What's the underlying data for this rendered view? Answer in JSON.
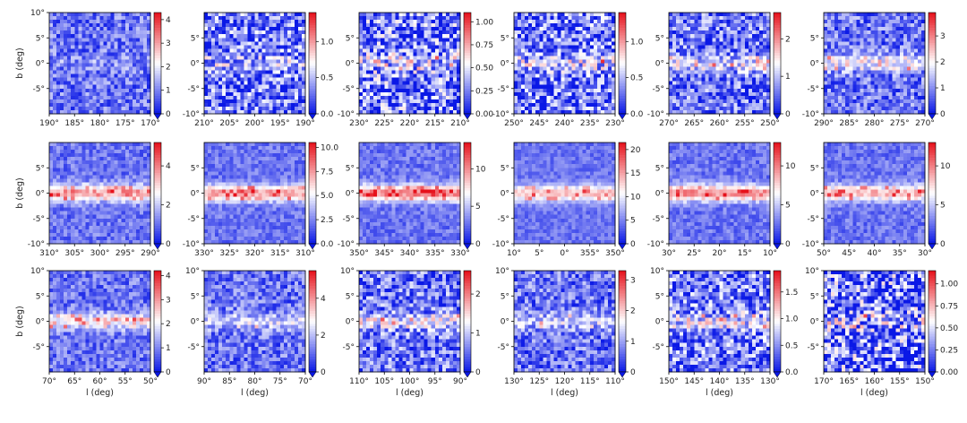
{
  "figure": {
    "colormap": {
      "low": "#0a18e6",
      "mid": "#ffffff",
      "high": "#e6101a"
    },
    "common_xlabel": "l (deg)",
    "common_ylabel": "b (deg)",
    "lat_ticks": [
      "10°",
      "5°",
      "0°",
      "-5°",
      "-10°"
    ]
  },
  "chart_data": [
    {
      "type": "heatmap",
      "xlabel": "",
      "ylabel": "b (deg)",
      "xlim": [
        190,
        170
      ],
      "ylim": [
        -10,
        10
      ],
      "xticks": [
        "190°",
        "185°",
        "180°",
        "175°",
        "170°"
      ],
      "yticks": [
        "10°",
        "5°",
        "0°",
        "-5°"
      ],
      "cbar_ticks": [
        "4",
        "3",
        "2",
        "1",
        "0"
      ],
      "cbar_range": [
        0,
        4.3
      ],
      "disk_strength": 0.1,
      "noise": 0.18,
      "blobs": []
    },
    {
      "type": "heatmap",
      "xlabel": "",
      "ylabel": "",
      "xlim": [
        210,
        190
      ],
      "ylim": [
        -10,
        10
      ],
      "xticks": [
        "210°",
        "205°",
        "200°",
        "195°",
        "190°"
      ],
      "yticks": [
        "5°",
        "0°",
        "-5°",
        "-10°"
      ],
      "cbar_ticks": [
        "1.0",
        "0.5",
        "0.0"
      ],
      "cbar_range": [
        0,
        1.4
      ],
      "disk_strength": 0.25,
      "noise": 0.3,
      "blobs": []
    },
    {
      "type": "heatmap",
      "xlabel": "",
      "ylabel": "",
      "xlim": [
        230,
        210
      ],
      "ylim": [
        -10,
        10
      ],
      "xticks": [
        "230°",
        "225°",
        "220°",
        "215°",
        "210°"
      ],
      "yticks": [
        "5°",
        "0°",
        "-5°",
        "-10°"
      ],
      "cbar_ticks": [
        "1.00",
        "0.75",
        "0.50",
        "0.25",
        "0.00"
      ],
      "cbar_range": [
        0,
        1.1
      ],
      "disk_strength": 0.35,
      "noise": 0.35,
      "blobs": []
    },
    {
      "type": "heatmap",
      "xlabel": "",
      "ylabel": "",
      "xlim": [
        250,
        230
      ],
      "ylim": [
        -10,
        10
      ],
      "xticks": [
        "250°",
        "245°",
        "240°",
        "235°",
        "230°"
      ],
      "yticks": [
        "5°",
        "0°",
        "-5°",
        "-10°"
      ],
      "cbar_ticks": [
        "1.0",
        "0.5",
        "0.0"
      ],
      "cbar_range": [
        0,
        1.4
      ],
      "disk_strength": 0.35,
      "noise": 0.3,
      "blobs": []
    },
    {
      "type": "heatmap",
      "xlabel": "",
      "ylabel": "",
      "xlim": [
        270,
        250
      ],
      "ylim": [
        -10,
        10
      ],
      "xticks": [
        "270°",
        "265°",
        "260°",
        "255°",
        "250°"
      ],
      "yticks": [
        "5°",
        "0°",
        "-5°",
        "-10°"
      ],
      "cbar_ticks": [
        "2",
        "1",
        "0"
      ],
      "cbar_range": [
        0,
        2.7
      ],
      "disk_strength": 0.4,
      "noise": 0.25,
      "blobs": []
    },
    {
      "type": "heatmap",
      "xlabel": "",
      "ylabel": "",
      "xlim": [
        290,
        270
      ],
      "ylim": [
        -10,
        10
      ],
      "xticks": [
        "290°",
        "285°",
        "280°",
        "275°",
        "270°"
      ],
      "yticks": [
        "5°",
        "0°",
        "-5°",
        "-10°"
      ],
      "cbar_ticks": [
        "3",
        "2",
        "1",
        "0"
      ],
      "cbar_range": [
        0,
        3.9
      ],
      "disk_strength": 0.45,
      "noise": 0.2,
      "blobs": []
    },
    {
      "type": "heatmap",
      "xlabel": "",
      "ylabel": "b (deg)",
      "xlim": [
        310,
        290
      ],
      "ylim": [
        -10,
        10
      ],
      "xticks": [
        "310°",
        "305°",
        "300°",
        "295°",
        "290°"
      ],
      "yticks": [
        "5°",
        "0°",
        "-5°",
        "-10°"
      ],
      "cbar_ticks": [
        "4",
        "2",
        "0"
      ],
      "cbar_range": [
        0,
        5.2
      ],
      "disk_strength": 0.85,
      "noise": 0.12,
      "blobs": []
    },
    {
      "type": "heatmap",
      "xlabel": "",
      "ylabel": "",
      "xlim": [
        330,
        310
      ],
      "ylim": [
        -10,
        10
      ],
      "xticks": [
        "330°",
        "325°",
        "320°",
        "315°",
        "310°"
      ],
      "yticks": [
        "5°",
        "0°",
        "-5°",
        "-10°"
      ],
      "cbar_ticks": [
        "10.0",
        "7.5",
        "5.0",
        "2.5",
        "0.0"
      ],
      "cbar_range": [
        0,
        10.5
      ],
      "disk_strength": 0.85,
      "noise": 0.1,
      "blobs": []
    },
    {
      "type": "heatmap",
      "xlabel": "",
      "ylabel": "",
      "xlim": [
        350,
        330
      ],
      "ylim": [
        -10,
        10
      ],
      "xticks": [
        "350°",
        "345°",
        "340°",
        "335°",
        "330°"
      ],
      "yticks": [
        "5°",
        "0°",
        "-5°",
        "-10°"
      ],
      "cbar_ticks": [
        "10",
        "5",
        "0"
      ],
      "cbar_range": [
        0,
        13.5
      ],
      "disk_strength": 0.95,
      "noise": 0.1,
      "blobs": []
    },
    {
      "type": "heatmap",
      "xlabel": "",
      "ylabel": "",
      "xlim": [
        10,
        350
      ],
      "ylim": [
        -10,
        10
      ],
      "xticks": [
        "10°",
        "5°",
        "0°",
        "355°",
        "350°"
      ],
      "yticks": [
        "5°",
        "0°",
        "-5°",
        "-10°"
      ],
      "cbar_ticks": [
        "20",
        "15",
        "10",
        "5",
        "0"
      ],
      "cbar_range": [
        0,
        21.5
      ],
      "disk_strength": 0.7,
      "noise": 0.08,
      "blobs": []
    },
    {
      "type": "heatmap",
      "xlabel": "",
      "ylabel": "",
      "xlim": [
        30,
        10
      ],
      "ylim": [
        -10,
        10
      ],
      "xticks": [
        "30°",
        "25°",
        "20°",
        "15°",
        "10°"
      ],
      "yticks": [
        "5°",
        "0°",
        "-5°",
        "-10°"
      ],
      "cbar_ticks": [
        "10",
        "5",
        "0"
      ],
      "cbar_range": [
        0,
        13
      ],
      "disk_strength": 0.9,
      "noise": 0.1,
      "blobs": []
    },
    {
      "type": "heatmap",
      "xlabel": "",
      "ylabel": "",
      "xlim": [
        50,
        30
      ],
      "ylim": [
        -10,
        10
      ],
      "xticks": [
        "50°",
        "45°",
        "40°",
        "35°",
        "30°"
      ],
      "yticks": [
        "5°",
        "0°",
        "-5°",
        "-10°"
      ],
      "cbar_ticks": [
        "10",
        "5",
        "0"
      ],
      "cbar_range": [
        0,
        13
      ],
      "disk_strength": 0.75,
      "noise": 0.1,
      "blobs": []
    },
    {
      "type": "heatmap",
      "xlabel": "l (deg)",
      "ylabel": "b (deg)",
      "xlim": [
        70,
        50
      ],
      "ylim": [
        -10,
        10
      ],
      "xticks": [
        "70°",
        "65°",
        "60°",
        "55°",
        "50°"
      ],
      "yticks": [
        "10°",
        "5°",
        "0°",
        "-5°"
      ],
      "cbar_ticks": [
        "4",
        "3",
        "2",
        "1",
        "0"
      ],
      "cbar_range": [
        0,
        4.2
      ],
      "disk_strength": 0.6,
      "noise": 0.15,
      "blobs": []
    },
    {
      "type": "heatmap",
      "xlabel": "l (deg)",
      "ylabel": "",
      "xlim": [
        90,
        70
      ],
      "ylim": [
        -10,
        10
      ],
      "xticks": [
        "90°",
        "85°",
        "80°",
        "75°",
        "70°"
      ],
      "yticks": [
        "10°",
        "5°",
        "0°",
        "-5°"
      ],
      "cbar_ticks": [
        "4",
        "2",
        "0"
      ],
      "cbar_range": [
        0,
        5.5
      ],
      "disk_strength": 0.35,
      "noise": 0.18,
      "blobs": []
    },
    {
      "type": "heatmap",
      "xlabel": "l (deg)",
      "ylabel": "",
      "xlim": [
        110,
        90
      ],
      "ylim": [
        -10,
        10
      ],
      "xticks": [
        "110°",
        "105°",
        "100°",
        "95°",
        "90°"
      ],
      "yticks": [
        "10°",
        "5°",
        "0°",
        "-5°"
      ],
      "cbar_ticks": [
        "2",
        "1",
        "0"
      ],
      "cbar_range": [
        0,
        2.6
      ],
      "disk_strength": 0.4,
      "noise": 0.25,
      "blobs": []
    },
    {
      "type": "heatmap",
      "xlabel": "l (deg)",
      "ylabel": "",
      "xlim": [
        130,
        110
      ],
      "ylim": [
        -10,
        10
      ],
      "xticks": [
        "130°",
        "125°",
        "120°",
        "115°",
        "110°"
      ],
      "yticks": [
        "10°",
        "5°",
        "0°",
        "-5°"
      ],
      "cbar_ticks": [
        "3",
        "2",
        "1",
        "0"
      ],
      "cbar_range": [
        0,
        3.3
      ],
      "disk_strength": 0.3,
      "noise": 0.2,
      "blobs": []
    },
    {
      "type": "heatmap",
      "xlabel": "l (deg)",
      "ylabel": "",
      "xlim": [
        150,
        130
      ],
      "ylim": [
        -10,
        10
      ],
      "xticks": [
        "150°",
        "145°",
        "140°",
        "135°",
        "130°"
      ],
      "yticks": [
        "10°",
        "5°",
        "0°",
        "-5°"
      ],
      "cbar_ticks": [
        "1.5",
        "1.0",
        "0.5",
        "0.0"
      ],
      "cbar_range": [
        0,
        1.9
      ],
      "disk_strength": 0.35,
      "noise": 0.3,
      "blobs": []
    },
    {
      "type": "heatmap",
      "xlabel": "l (deg)",
      "ylabel": "",
      "xlim": [
        170,
        150
      ],
      "ylim": [
        -10,
        10
      ],
      "xticks": [
        "170°",
        "165°",
        "160°",
        "155°",
        "150°"
      ],
      "yticks": [
        "10°",
        "5°",
        "0°",
        "-5°"
      ],
      "cbar_ticks": [
        "1.00",
        "0.75",
        "0.50",
        "0.25",
        "0.00"
      ],
      "cbar_range": [
        0,
        1.15
      ],
      "disk_strength": 0.25,
      "noise": 0.38,
      "blobs": []
    }
  ]
}
